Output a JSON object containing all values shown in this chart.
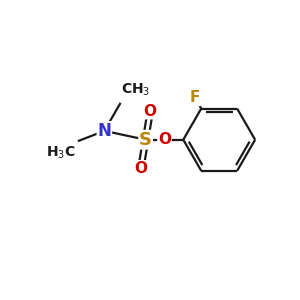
{
  "background_color": "#ffffff",
  "bond_color": "#1a1a1a",
  "N_color": "#3333cc",
  "O_color": "#cc0000",
  "S_color": "#b8860b",
  "F_color": "#b8860b",
  "fig_w": 3.0,
  "fig_h": 3.0,
  "dpi": 100,
  "xlim": [
    0,
    10
  ],
  "ylim": [
    0,
    10
  ],
  "lw": 1.6
}
